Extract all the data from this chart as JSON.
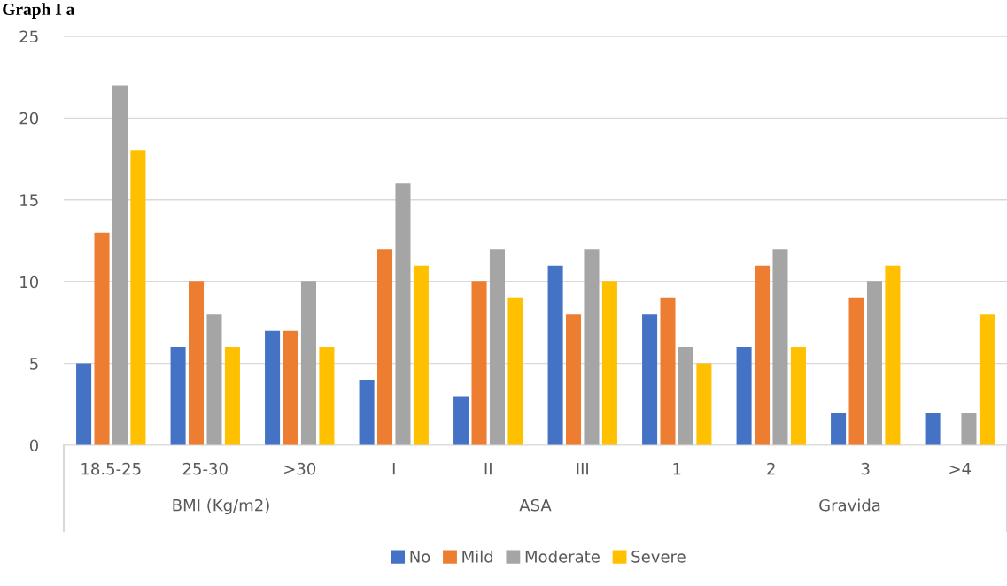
{
  "chart_data": {
    "type": "bar",
    "title": "Graph I a",
    "categories": [
      "18.5-25",
      "25-30",
      ">30",
      "I",
      "II",
      "III",
      "1",
      "2",
      "3",
      ">4"
    ],
    "series": [
      {
        "name": "No",
        "color": "#4472c4",
        "values": [
          5,
          6,
          7,
          4,
          3,
          11,
          8,
          6,
          2,
          2
        ]
      },
      {
        "name": "Mild",
        "color": "#ed7d31",
        "values": [
          13,
          10,
          7,
          12,
          10,
          8,
          9,
          11,
          9,
          0
        ]
      },
      {
        "name": "Moderate",
        "color": "#a5a5a5",
        "values": [
          22,
          8,
          10,
          16,
          12,
          12,
          6,
          12,
          10,
          2
        ]
      },
      {
        "name": "Severe",
        "color": "#ffc000",
        "values": [
          18,
          6,
          6,
          11,
          9,
          10,
          5,
          6,
          11,
          8
        ]
      }
    ],
    "annotations": [
      "BMI (Kg/m2)",
      "ASA",
      "Gravida"
    ],
    "ylim": [
      0,
      25
    ],
    "yticks": [
      0,
      5,
      10,
      15,
      20,
      25
    ],
    "grid": "y",
    "legend": "bottom"
  }
}
